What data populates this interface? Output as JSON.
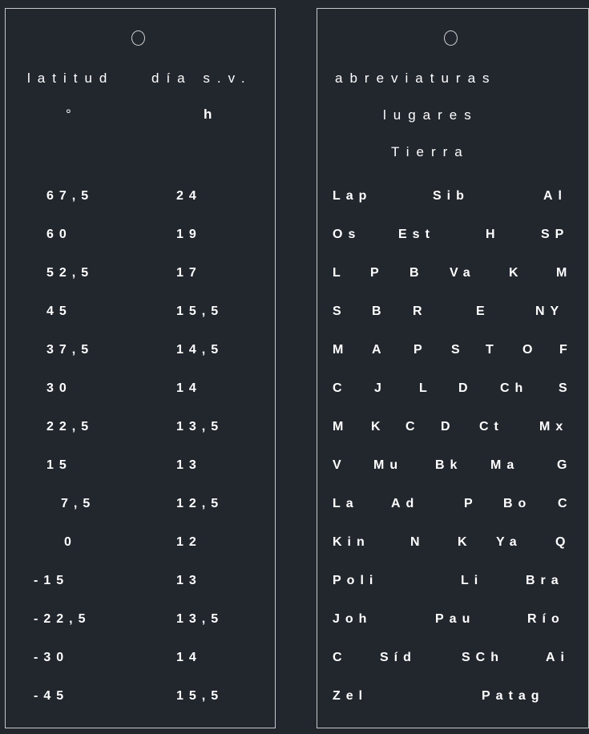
{
  "left_card": {
    "header": {
      "col1": "latitud",
      "col2": "día s.v.",
      "unit1": "°",
      "unit2": "h"
    },
    "rows": [
      {
        "lat": "67,5",
        "day": "24"
      },
      {
        "lat": "60",
        "day": "19"
      },
      {
        "lat": "52,5",
        "day": "17"
      },
      {
        "lat": "45",
        "day": "15,5"
      },
      {
        "lat": "37,5",
        "day": "14,5"
      },
      {
        "lat": "30",
        "day": "14"
      },
      {
        "lat": "22,5",
        "day": "13,5"
      },
      {
        "lat": "15",
        "day": "13"
      },
      {
        "lat": "7,5",
        "day": "12,5"
      },
      {
        "lat": "0",
        "day": "12"
      },
      {
        "lat": "-15",
        "day": "13"
      },
      {
        "lat": "-22,5",
        "day": "13,5"
      },
      {
        "lat": "-30",
        "day": "14"
      },
      {
        "lat": "-45",
        "day": "15,5"
      }
    ]
  },
  "right_card": {
    "header": {
      "line1": "abreviaturas",
      "line2": "lugares",
      "line3": "Tierra"
    },
    "rows": [
      [
        "Lap",
        "Sib",
        "Al"
      ],
      [
        "Os",
        "Est",
        "H",
        "SP"
      ],
      [
        "L",
        "P",
        "B",
        "Va",
        "K",
        "M"
      ],
      [
        "S",
        "B",
        "R",
        "E",
        "NY"
      ],
      [
        "M",
        "A",
        "P",
        "S",
        "T",
        "O",
        "F"
      ],
      [
        "C",
        "J",
        "L",
        "D",
        "Ch",
        "S"
      ],
      [
        "M",
        "K",
        "C",
        "D",
        "Ct",
        "Mx"
      ],
      [
        "V",
        "Mu",
        "Bk",
        "Ma",
        "G"
      ],
      [
        "La",
        "Ad",
        "P",
        "Bo",
        "C"
      ],
      [
        "Kin",
        "N",
        "K",
        "Ya",
        "Q"
      ],
      [
        "Poli",
        "Li",
        "Bra"
      ],
      [
        "Joh",
        "Pau",
        "Río"
      ],
      [
        "C",
        "Síd",
        "SCh",
        "Ai"
      ],
      [
        "Zel",
        "Patag"
      ]
    ]
  },
  "colors": {
    "background": "#22272e",
    "text": "#ffffff",
    "outline": "#c8c8c8"
  }
}
